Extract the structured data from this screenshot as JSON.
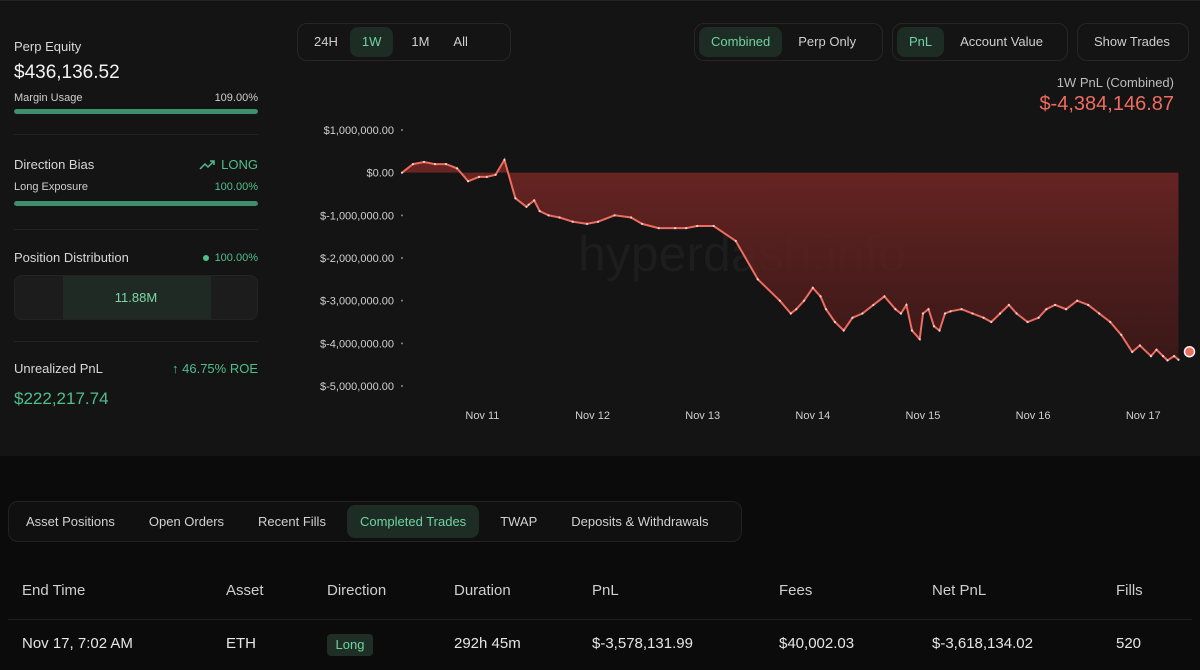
{
  "sidebar": {
    "perp_equity_label": "Perp Equity",
    "perp_equity_value": "$436,136.52",
    "margin_usage_label": "Margin Usage",
    "margin_usage_value": "109.00%",
    "margin_usage_fraction": 1.0,
    "direction_bias_label": "Direction Bias",
    "direction_bias_value": "LONG",
    "long_exposure_label": "Long Exposure",
    "long_exposure_value": "100.00%",
    "long_exposure_fraction": 1.0,
    "position_distribution_label": "Position Distribution",
    "position_distribution_value": "100.00%",
    "position_distribution_amount": "11.88M",
    "unrealized_pnl_label": "Unrealized PnL",
    "unrealized_roe": "46.75% ROE",
    "unrealized_pnl_value": "$222,217.74"
  },
  "range_tabs": [
    "24H",
    "1W",
    "1M",
    "All"
  ],
  "range_active": "1W",
  "mode_tabs": [
    "Combined",
    "Perp Only"
  ],
  "mode_active": "Combined",
  "metric_tabs": [
    "PnL",
    "Account Value"
  ],
  "metric_active": "PnL",
  "show_trades_label": "Show Trades",
  "chart_header": {
    "label": "1W PnL (Combined)",
    "value": "$-4,384,146.87"
  },
  "colors": {
    "accent_green": "#4fbf8c",
    "loss_red": "#ef6b60",
    "background": "#141414"
  },
  "chart_data": {
    "type": "area",
    "watermark": "hyperdash.info",
    "y_ticks": [
      "$1,000,000.00",
      "$0.00",
      "$-1,000,000.00",
      "$-2,000,000.00",
      "$-3,000,000.00",
      "$-4,000,000.00",
      "$-5,000,000.00"
    ],
    "y_tick_values": [
      1000000,
      0,
      -1000000,
      -2000000,
      -3000000,
      -4000000,
      -5000000
    ],
    "x_ticks": [
      "Nov 11",
      "Nov 12",
      "Nov 13",
      "Nov 14",
      "Nov 15",
      "Nov 16",
      "Nov 17"
    ],
    "x_range": [
      10.27,
      17.37
    ],
    "ylim": [
      -5000000,
      1000000
    ],
    "baseline": 0,
    "series": [
      {
        "x": [
          10.27,
          10.37,
          10.47,
          10.57,
          10.67,
          10.77,
          10.87,
          10.97,
          11.04,
          11.12,
          11.2,
          11.3,
          11.4,
          11.42,
          11.47,
          11.52,
          11.6,
          11.7,
          11.82,
          11.95,
          12.05,
          12.2,
          12.35,
          12.45,
          12.6,
          12.75,
          12.85,
          12.95,
          13.1,
          13.3,
          13.5,
          13.7,
          13.8,
          13.85,
          13.92,
          14.0,
          14.07,
          14.12,
          14.2,
          14.28,
          14.36,
          14.45,
          14.55,
          14.65,
          14.75,
          14.8,
          14.85,
          14.9,
          14.97,
          15.0,
          15.05,
          15.1,
          15.15,
          15.2,
          15.25,
          15.35,
          15.45,
          15.55,
          15.62,
          15.7,
          15.78,
          15.85,
          15.95,
          16.05,
          16.12,
          16.2,
          16.3,
          16.4,
          16.5,
          16.6,
          16.7,
          16.8,
          16.9,
          16.97,
          17.07,
          17.12,
          17.18,
          17.22,
          17.28,
          17.32
        ],
        "y": [
          0,
          200000,
          250000,
          200000,
          200000,
          100000,
          -200000,
          -100000,
          -100000,
          -50000,
          300000,
          -600000,
          -800000,
          -750000,
          -650000,
          -900000,
          -1000000,
          -1050000,
          -1150000,
          -1200000,
          -1150000,
          -1000000,
          -1050000,
          -1200000,
          -1300000,
          -1300000,
          -1300000,
          -1250000,
          -1250000,
          -1600000,
          -2500000,
          -3000000,
          -3300000,
          -3200000,
          -3000000,
          -2700000,
          -2900000,
          -3200000,
          -3500000,
          -3700000,
          -3400000,
          -3300000,
          -3100000,
          -2900000,
          -3200000,
          -3300000,
          -3100000,
          -3700000,
          -3900000,
          -3300000,
          -3200000,
          -3600000,
          -3700000,
          -3300000,
          -3250000,
          -3200000,
          -3300000,
          -3400000,
          -3500000,
          -3300000,
          -3100000,
          -3300000,
          -3500000,
          -3400000,
          -3200000,
          -3100000,
          -3200000,
          -3000000,
          -3100000,
          -3300000,
          -3500000,
          -3800000,
          -4200000,
          -4050000,
          -4300000,
          -4150000,
          -4300000,
          -4400000,
          -4300000,
          -4384146.87
        ]
      }
    ]
  },
  "bottom_tabs": [
    "Asset Positions",
    "Open Orders",
    "Recent Fills",
    "Completed Trades",
    "TWAP",
    "Deposits & Withdrawals"
  ],
  "bottom_tab_active": "Completed Trades",
  "table": {
    "headers": [
      "End Time",
      "Asset",
      "Direction",
      "Duration",
      "PnL",
      "Fees",
      "Net PnL",
      "Fills"
    ],
    "row": {
      "end_time": "Nov 17, 7:02 AM",
      "asset": "ETH",
      "direction": "Long",
      "duration": "292h 45m",
      "pnl": "$-3,578,131.99",
      "fees": "$40,002.03",
      "net_pnl": "$-3,618,134.02",
      "fills": "520"
    }
  }
}
